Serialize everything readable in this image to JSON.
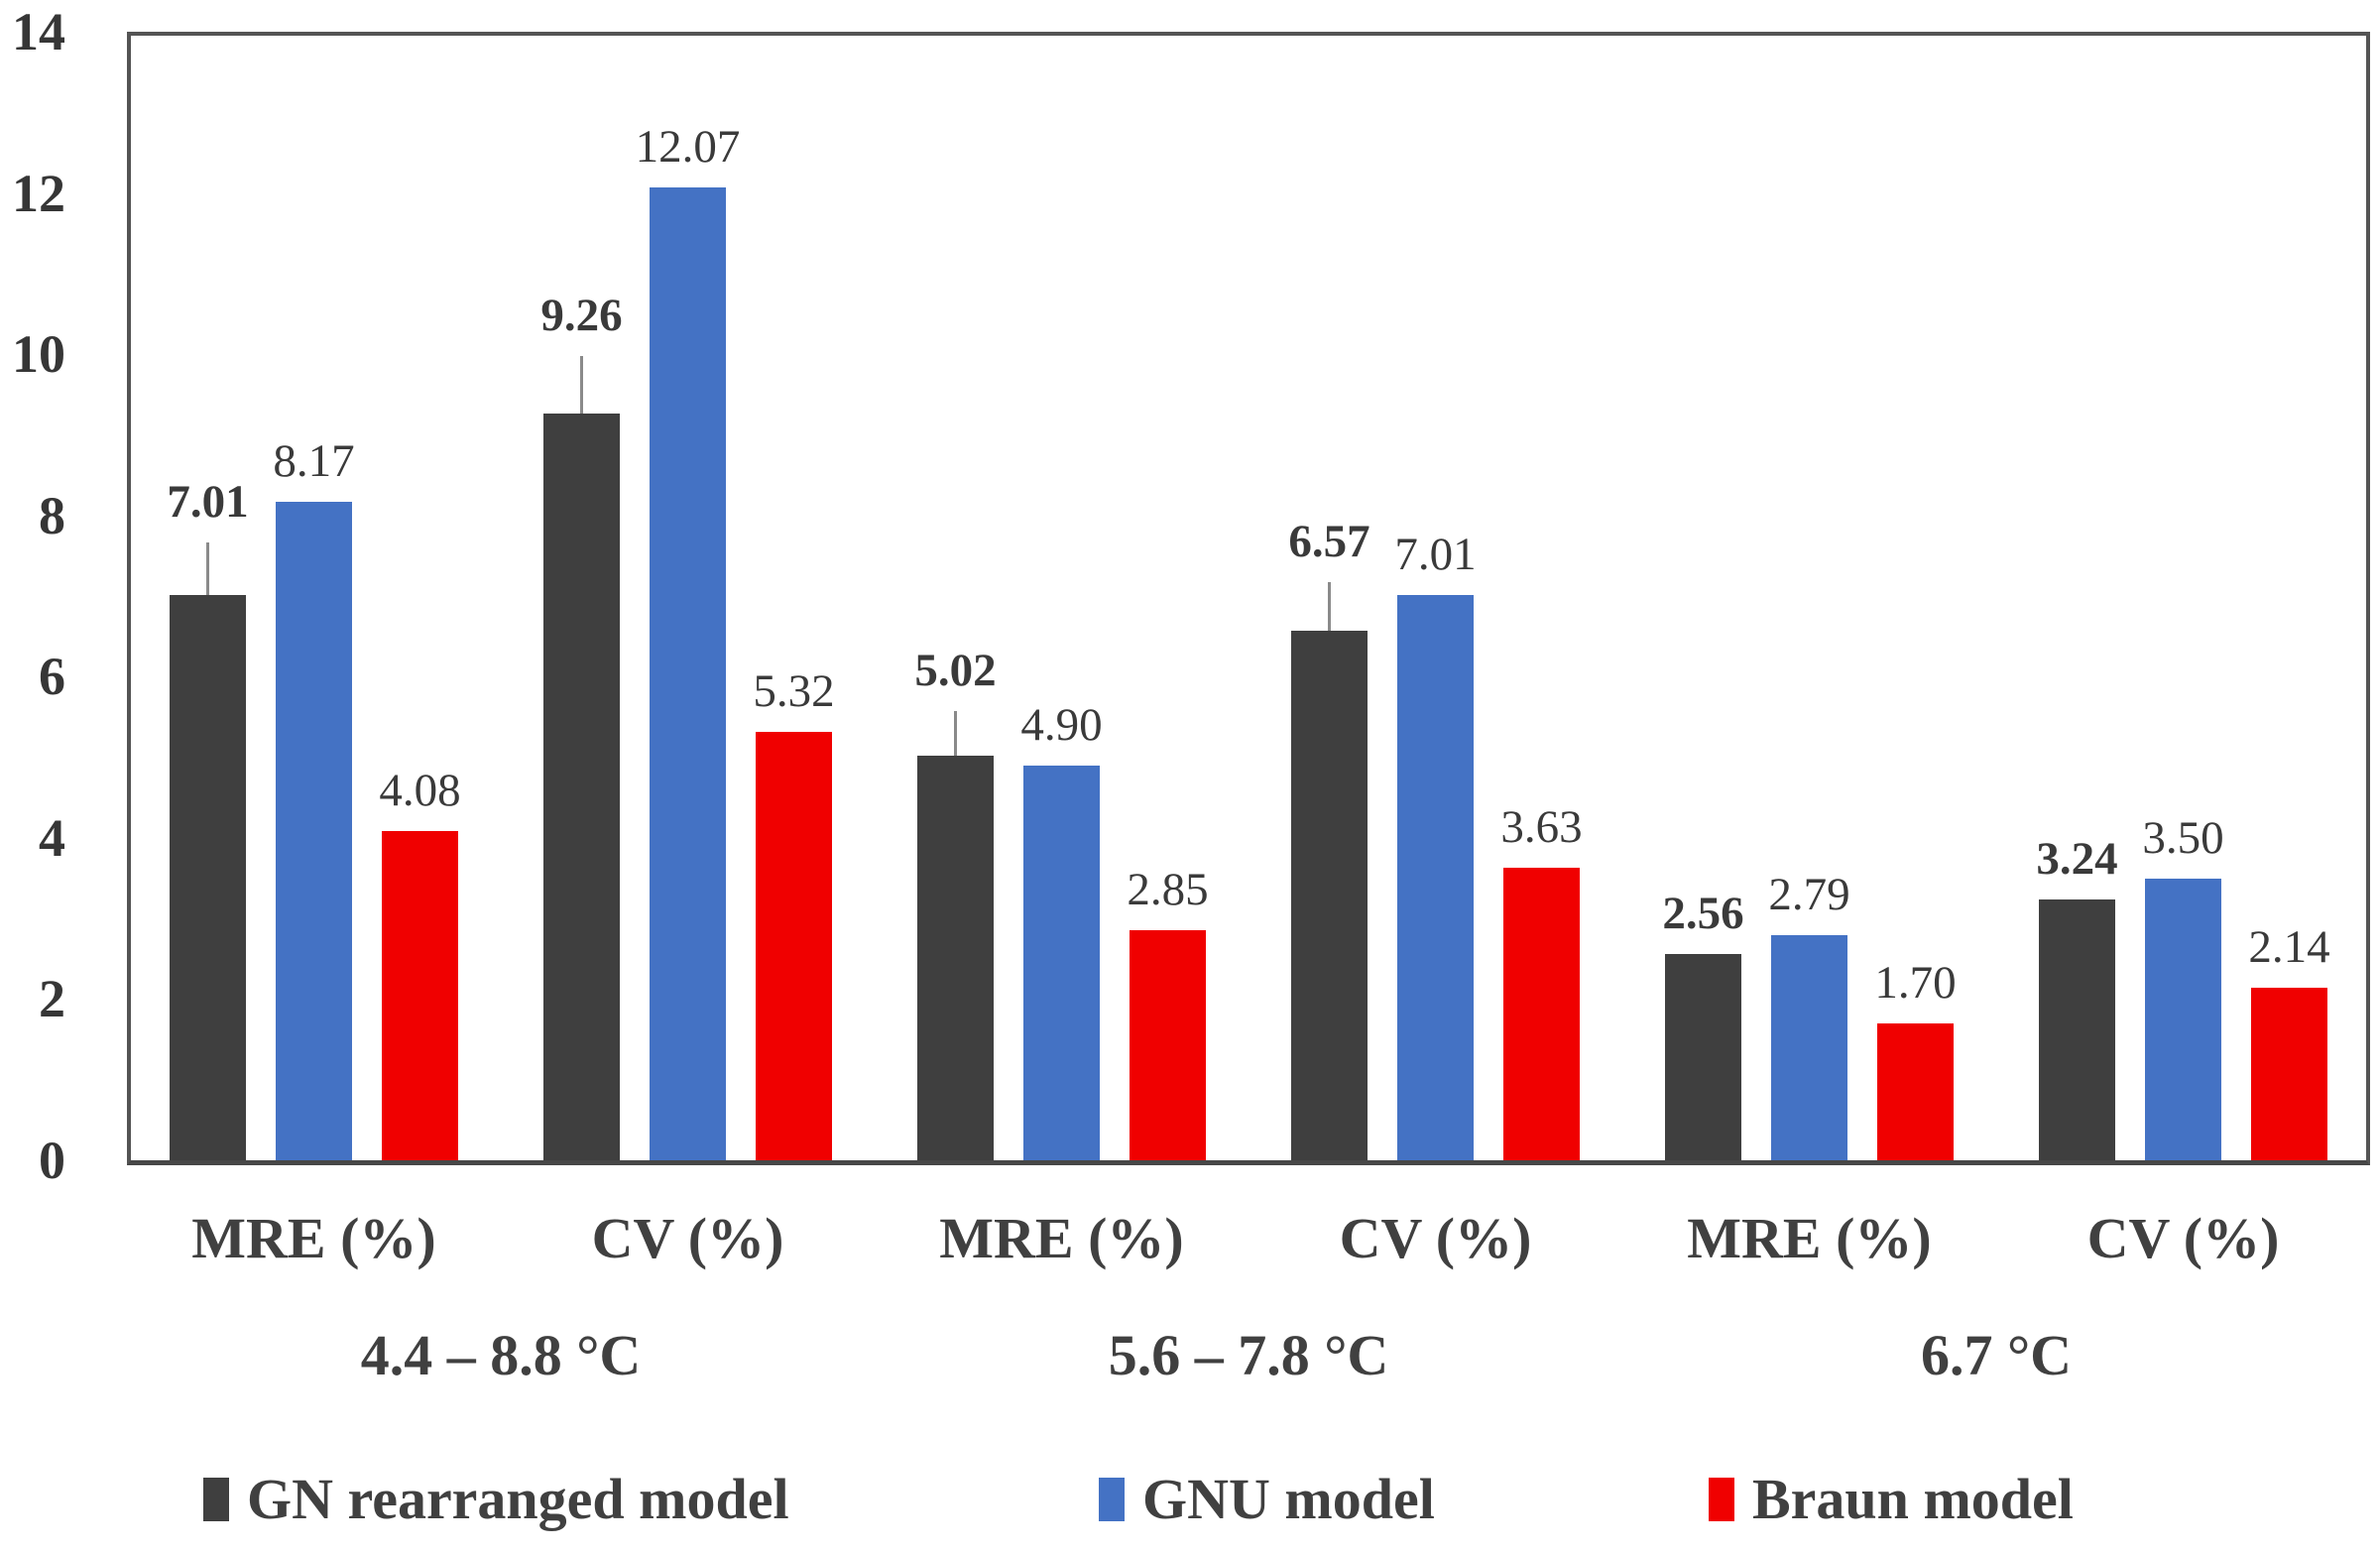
{
  "chart_data": {
    "type": "bar",
    "title": "",
    "xlabel": "",
    "ylabel": "",
    "ylim": [
      0,
      14
    ],
    "yticks": [
      "0",
      "2",
      "4",
      "6",
      "8",
      "10",
      "12",
      "14"
    ],
    "grid": false,
    "legend_position": "bottom",
    "categories": [
      "MRE (%)",
      "CV (%)",
      "MRE (%)",
      "CV (%)",
      "MRE (%)",
      "CV (%)"
    ],
    "category_groups": [
      "4.4 – 8.8 °C",
      "5.6 – 7.8 °C",
      "6.7 °C"
    ],
    "series": [
      {
        "name": "GN rearranged model",
        "color": "#3F3F3F",
        "values": [
          7.01,
          9.26,
          5.02,
          6.57,
          2.56,
          3.24
        ],
        "value_labels": [
          "7.01",
          "9.26",
          "5.02",
          "6.57",
          "2.56",
          "3.24"
        ],
        "error_up": [
          0.65,
          0.72,
          0.55,
          0.6,
          0,
          0
        ],
        "label_bold": true
      },
      {
        "name": "GNU model",
        "color": "#4472C4",
        "values": [
          8.17,
          12.07,
          4.9,
          7.01,
          2.79,
          3.5
        ],
        "value_labels": [
          "8.17",
          "12.07",
          "4.90",
          "7.01",
          "2.79",
          "3.50"
        ],
        "error_up": [
          0,
          0,
          0,
          0,
          0,
          0
        ],
        "label_bold": false
      },
      {
        "name": "Braun model",
        "color": "#F00000",
        "values": [
          4.08,
          5.32,
          2.85,
          3.63,
          1.7,
          2.14
        ],
        "value_labels": [
          "4.08",
          "5.32",
          "2.85",
          "3.63",
          "1.70",
          "2.14"
        ],
        "error_up": [
          0,
          0,
          0,
          0,
          0,
          0
        ],
        "label_bold": false
      }
    ]
  }
}
